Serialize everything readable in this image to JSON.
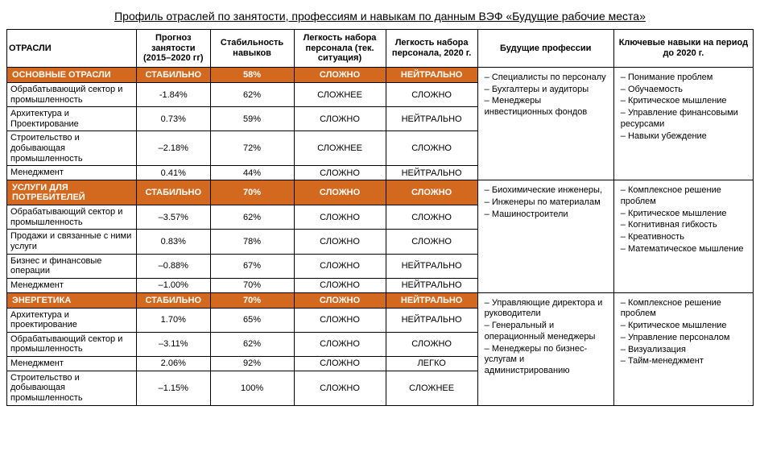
{
  "title": "Профиль отраслей по занятости, профессиям и навыкам по данным ВЭФ «Будущие рабочие места»",
  "headers": {
    "industry": "ОТРАСЛИ",
    "forecast": "Прогноз занятости (2015–2020 гг)",
    "stability": "Стабильность навыков",
    "ease_now": "Легкость набора персонала (тек. ситуация)",
    "ease_2020": "Легкость набора персонала, 2020 г.",
    "future_prof": "Будущие профессии",
    "key_skills": "Ключевые навыки на период до 2020 г."
  },
  "sections": [
    {
      "label": "ОСНОВНЫЕ ОТРАСЛИ",
      "forecast": "СТАБИЛЬНО",
      "stability": "58%",
      "ease_now": "СЛОЖНО",
      "ease_2020": "НЕЙТРАЛЬНО",
      "rows": [
        {
          "label": "Обрабатывающий сектор и промышленность",
          "forecast": "-1.84%",
          "stability": "62%",
          "ease_now": "СЛОЖНЕЕ",
          "ease_2020": "СЛОЖНО"
        },
        {
          "label": "Архитектура и Проектирование",
          "forecast": "0.73%",
          "stability": "59%",
          "ease_now": "СЛОЖНО",
          "ease_2020": "НЕЙТРАЛЬНО"
        },
        {
          "label": "Строительство и добывающая промышленность",
          "forecast": "–2.18%",
          "stability": "72%",
          "ease_now": "СЛОЖНЕЕ",
          "ease_2020": "СЛОЖНО"
        },
        {
          "label": "Менеджмент",
          "forecast": "0.41%",
          "stability": "44%",
          "ease_now": "СЛОЖНО",
          "ease_2020": "НЕЙТРАЛЬНО"
        }
      ],
      "professions": [
        "Специалисты по персоналу",
        "Бухгалтеры и аудиторы",
        "Менеджеры инвестиционных фондов"
      ],
      "skills": [
        "Понимание проблем",
        "Обучаемость",
        "Критическое мышление",
        "Управление финансовыми ресурсами",
        "Навыки убеждение"
      ]
    },
    {
      "label": "УСЛУГИ ДЛЯ ПОТРЕБИТЕЛЕЙ",
      "forecast": "СТАБИЛЬНО",
      "stability": "70%",
      "ease_now": "СЛОЖНО",
      "ease_2020": "СЛОЖНО",
      "rows": [
        {
          "label": "Обрабатывающий сектор и промышленность",
          "forecast": "–3.57%",
          "stability": "62%",
          "ease_now": "СЛОЖНО",
          "ease_2020": "СЛОЖНО"
        },
        {
          "label": "Продажи и связанные с ними услуги",
          "forecast": "0.83%",
          "stability": "78%",
          "ease_now": "СЛОЖНО",
          "ease_2020": "СЛОЖНО"
        },
        {
          "label": "Бизнес и финансовые операции",
          "forecast": "–0.88%",
          "stability": "67%",
          "ease_now": "СЛОЖНО",
          "ease_2020": "НЕЙТРАЛЬНО"
        },
        {
          "label": "Менеджмент",
          "forecast": "–1.00%",
          "stability": "70%",
          "ease_now": "СЛОЖНО",
          "ease_2020": "НЕЙТРАЛЬНО"
        }
      ],
      "professions": [
        "Биохимические инженеры,",
        "Инженеры по материалам",
        "Машиностроители"
      ],
      "skills": [
        "Комплексное решение проблем",
        "Критическое мышление",
        "Когнитивная гибкость",
        "Креативность",
        "Математическое мышление"
      ]
    },
    {
      "label": "ЭНЕРГЕТИКА",
      "forecast": "СТАБИЛЬНО",
      "stability": "70%",
      "ease_now": "СЛОЖНО",
      "ease_2020": "НЕЙТРАЛЬНО",
      "rows": [
        {
          "label": "Архитектура и проектирование",
          "forecast": "1.70%",
          "stability": "65%",
          "ease_now": "СЛОЖНО",
          "ease_2020": "НЕЙТРАЛЬНО"
        },
        {
          "label": "Обрабатывающий сектор и промышленность",
          "forecast": "–3.11%",
          "stability": "62%",
          "ease_now": "СЛОЖНО",
          "ease_2020": "СЛОЖНО"
        },
        {
          "label": "Менеджмент",
          "forecast": "2.06%",
          "stability": "92%",
          "ease_now": "СЛОЖНО",
          "ease_2020": "ЛЕГКО"
        },
        {
          "label": "Строительство и добывающая промышленность",
          "forecast": "–1.15%",
          "stability": "100%",
          "ease_now": "СЛОЖНО",
          "ease_2020": "СЛОЖНЕЕ"
        }
      ],
      "professions": [
        "Управляющие директора и руководители",
        "Генеральный и операционный менеджеры",
        "Менеджеры по бизнес-услугам и администрированию"
      ],
      "skills": [
        "Комплексное решение проблем",
        "Критическое мышление",
        "Управление персоналом",
        "Визуализация",
        "Тайм-менеджмент"
      ]
    }
  ],
  "colors": {
    "section_bg": "#d2691e",
    "section_fg": "#ffffff",
    "border": "#000000"
  }
}
